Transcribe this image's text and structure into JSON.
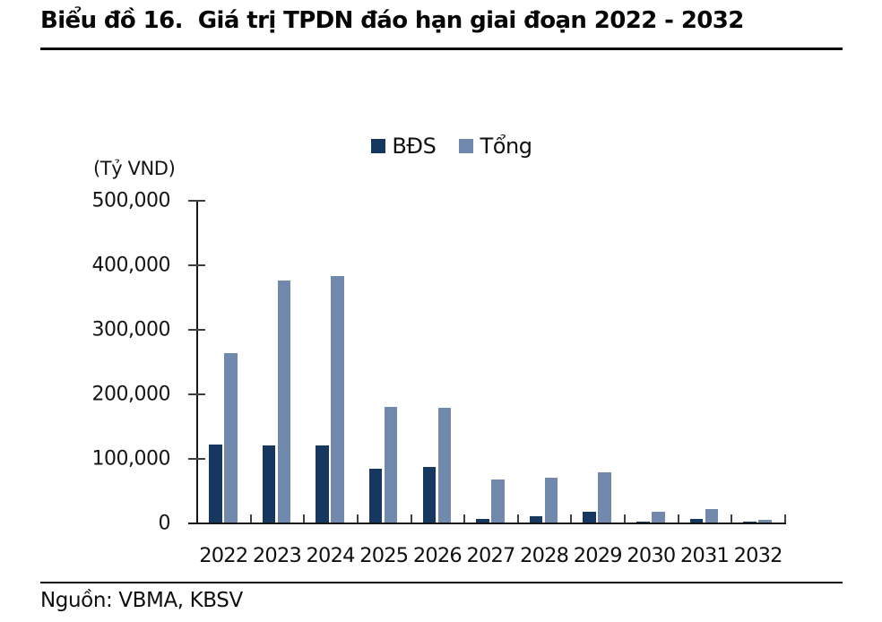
{
  "header": {
    "title": "Biểu đồ 16.  Giá trị TPDN đáo hạn giai đoạn 2022 - 2032"
  },
  "footer": {
    "source": "Nguồn: VBMA, KBSV"
  },
  "chart_data": {
    "type": "bar",
    "title": "Biểu đồ 16. Giá trị TPDN đáo hạn giai đoạn 2022 - 2032",
    "unit_label": "(Tỷ VND)",
    "categories": [
      "2022",
      "2023",
      "2024",
      "2025",
      "2026",
      "2027",
      "2028",
      "2029",
      "2030",
      "2031",
      "2032"
    ],
    "series": [
      {
        "name": "BĐS",
        "slug": "bds",
        "color": "#16375F",
        "values": [
          121000,
          119000,
          119000,
          84000,
          86000,
          6000,
          10000,
          16000,
          2000,
          5000,
          1000
        ]
      },
      {
        "name": "Tổng",
        "slug": "tong",
        "color": "#7189AC",
        "values": [
          262000,
          375000,
          382000,
          179000,
          178000,
          66000,
          70000,
          78000,
          16000,
          21000,
          4000
        ]
      }
    ],
    "ylim": [
      0,
      500000
    ],
    "yticks": [
      0,
      100000,
      200000,
      300000,
      400000,
      500000
    ],
    "grid": false,
    "legend_position": "top-center",
    "accent_colors": {
      "dark_bar": "#16375F",
      "light_bar": "#7189AC",
      "axis": "#161616",
      "tick": "#3f3f3f"
    }
  }
}
